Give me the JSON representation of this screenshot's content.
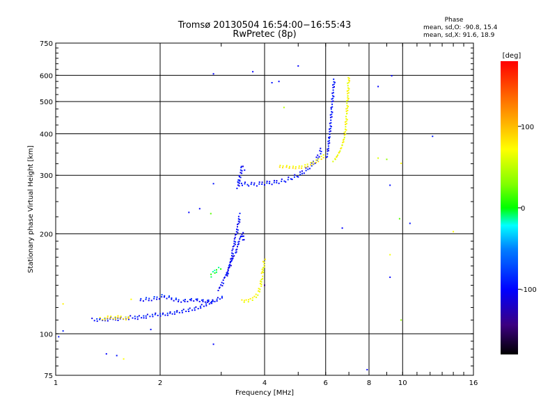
{
  "chart_data": {
    "type": "scatter",
    "title": "Tromsø 20130504 16:54:00−16:55:43",
    "subtitle": "RwPretec (8p)",
    "xlabel": "Frequency [MHz]",
    "ylabel": "Stationary phase Virtual Height [km]",
    "xscale": "log2",
    "yscale": "log",
    "xlim": [
      1,
      16
    ],
    "ylim": [
      75,
      750
    ],
    "x_ticks": [
      1,
      2,
      4,
      6,
      8,
      10,
      16
    ],
    "x_tick_labels": [
      "1",
      "2",
      "4",
      "6",
      "8",
      "10",
      "16"
    ],
    "y_ticks": [
      75,
      100,
      200,
      300,
      400,
      500,
      600,
      750
    ],
    "y_tick_labels": [
      "75",
      "100",
      "200",
      "300",
      "400",
      "500",
      "600",
      "750"
    ],
    "grid": true,
    "colorbar": {
      "label": "[deg]",
      "range": [
        -180,
        180
      ],
      "ticks": [
        100,
        0,
        -100
      ],
      "tick_labels": [
        "100",
        "0",
        "-100"
      ],
      "colormap": "rainbow (black=-180, blue=-100, cyan, green=0, yellow=100, red=180)"
    },
    "phase_stats": {
      "header": "Phase",
      "line_o": "mean, sd,O: -90.8, 15.4",
      "line_x": "mean, sd,X:  91.6, 18.9"
    },
    "traces": [
      {
        "name": "",
        "phase": -95,
        "x": [
          1.28,
          1.35,
          1.45,
          1.55,
          1.65,
          1.75,
          1.85,
          1.95,
          2.05,
          2.15,
          2.25,
          2.35,
          2.45,
          2.55,
          2.65,
          2.75,
          2.85,
          2.95,
          3.05
        ],
        "y": [
          110,
          110,
          111,
          111,
          112,
          112,
          113,
          114,
          114,
          115,
          116,
          117,
          118,
          119,
          121,
          123,
          125,
          127,
          130
        ]
      },
      {
        "name": "",
        "phase": -90,
        "x": [
          1.75,
          1.85,
          1.95,
          2.05,
          2.15,
          2.25,
          2.35,
          2.45,
          2.55,
          2.65,
          2.75,
          2.85
        ],
        "y": [
          127,
          127,
          128,
          130,
          128,
          126,
          126,
          127,
          127,
          126,
          126,
          125
        ]
      },
      {
        "name": "",
        "phase": -100,
        "x": [
          2.95,
          3.05,
          3.15,
          3.2,
          3.25,
          3.3,
          3.35,
          3.4
        ],
        "y": [
          135,
          145,
          155,
          165,
          180,
          195,
          210,
          230
        ]
      },
      {
        "name": "",
        "phase": -100,
        "x": [
          3.1,
          3.2,
          3.3,
          3.35,
          3.4,
          3.45,
          3.5
        ],
        "y": [
          150,
          165,
          175,
          185,
          195,
          200,
          190
        ]
      },
      {
        "name": "",
        "phase": -100,
        "x": [
          3.35,
          3.45,
          3.6,
          3.8,
          4.0,
          4.2,
          4.4,
          4.6,
          4.8,
          5.0,
          5.2,
          5.4,
          5.6,
          5.75,
          5.85
        ],
        "y": [
          290,
          283,
          282,
          282,
          284,
          285,
          287,
          290,
          295,
          300,
          308,
          318,
          330,
          345,
          362
        ]
      },
      {
        "name": "",
        "phase": -100,
        "x": [
          3.35,
          3.4,
          3.45,
          3.5
        ],
        "y": [
          275,
          300,
          320,
          310
        ]
      },
      {
        "name": "",
        "phase": -95,
        "x": [
          6.05,
          6.1,
          6.15,
          6.2,
          6.25,
          6.3,
          6.35
        ],
        "y": [
          340,
          360,
          390,
          430,
          480,
          530,
          590
        ]
      },
      {
        "name": "",
        "phase": 95,
        "x": [
          3.45,
          3.55,
          3.65,
          3.75,
          3.85,
          3.9,
          3.95,
          4.0
        ],
        "y": [
          125,
          125,
          126,
          128,
          133,
          140,
          152,
          168
        ]
      },
      {
        "name": "",
        "phase": 100,
        "x": [
          4.4,
          4.6,
          4.8,
          5.0,
          5.2,
          5.4,
          5.6,
          5.8,
          6.0
        ],
        "y": [
          320,
          320,
          318,
          318,
          320,
          325,
          330,
          338,
          348
        ]
      },
      {
        "name": "",
        "phase": 95,
        "x": [
          6.3,
          6.4,
          6.5,
          6.6,
          6.7,
          6.8,
          6.85,
          6.9,
          6.95,
          7.0
        ],
        "y": [
          330,
          335,
          345,
          355,
          370,
          390,
          420,
          460,
          520,
          600
        ]
      },
      {
        "name": "",
        "phase": 110,
        "x": [
          1.35,
          1.45,
          1.55,
          1.65
        ],
        "y": [
          111,
          112,
          112,
          111
        ]
      },
      {
        "name": "",
        "phase": 0,
        "x": [
          2.8,
          2.9,
          3.0
        ],
        "y": [
          150,
          155,
          158
        ]
      }
    ],
    "scatter_points": [
      {
        "x": 1.02,
        "y": 98,
        "phase": -95
      },
      {
        "x": 1.05,
        "y": 102,
        "phase": -90
      },
      {
        "x": 1.05,
        "y": 123,
        "phase": 105
      },
      {
        "x": 1.4,
        "y": 87,
        "phase": -100
      },
      {
        "x": 1.5,
        "y": 86,
        "phase": -95
      },
      {
        "x": 1.57,
        "y": 84,
        "phase": 100
      },
      {
        "x": 1.65,
        "y": 127,
        "phase": 100
      },
      {
        "x": 1.88,
        "y": 103,
        "phase": -95
      },
      {
        "x": 2.42,
        "y": 232,
        "phase": -100
      },
      {
        "x": 2.6,
        "y": 238,
        "phase": -100
      },
      {
        "x": 2.8,
        "y": 230,
        "phase": 20
      },
      {
        "x": 2.85,
        "y": 93,
        "phase": -100
      },
      {
        "x": 2.85,
        "y": 283,
        "phase": -95
      },
      {
        "x": 2.85,
        "y": 606,
        "phase": -100
      },
      {
        "x": 3.7,
        "y": 615,
        "phase": -100
      },
      {
        "x": 4.0,
        "y": 140,
        "phase": -150
      },
      {
        "x": 4.2,
        "y": 570,
        "phase": -95
      },
      {
        "x": 4.4,
        "y": 575,
        "phase": -100
      },
      {
        "x": 4.55,
        "y": 480,
        "phase": 60
      },
      {
        "x": 5.0,
        "y": 640,
        "phase": -100
      },
      {
        "x": 6.7,
        "y": 208,
        "phase": -100
      },
      {
        "x": 7.9,
        "y": 78,
        "phase": -100
      },
      {
        "x": 8.5,
        "y": 555,
        "phase": -100
      },
      {
        "x": 8.5,
        "y": 338,
        "phase": 80
      },
      {
        "x": 9.0,
        "y": 335,
        "phase": 40
      },
      {
        "x": 9.2,
        "y": 280,
        "phase": -95
      },
      {
        "x": 9.2,
        "y": 148,
        "phase": -100
      },
      {
        "x": 9.2,
        "y": 173,
        "phase": 95
      },
      {
        "x": 9.3,
        "y": 598,
        "phase": -100
      },
      {
        "x": 9.8,
        "y": 222,
        "phase": 20
      },
      {
        "x": 9.9,
        "y": 326,
        "phase": 100
      },
      {
        "x": 9.9,
        "y": 110,
        "phase": 40
      },
      {
        "x": 10.5,
        "y": 215,
        "phase": -95
      },
      {
        "x": 12.2,
        "y": 393,
        "phase": -90
      },
      {
        "x": 14.0,
        "y": 203,
        "phase": 100
      }
    ]
  }
}
